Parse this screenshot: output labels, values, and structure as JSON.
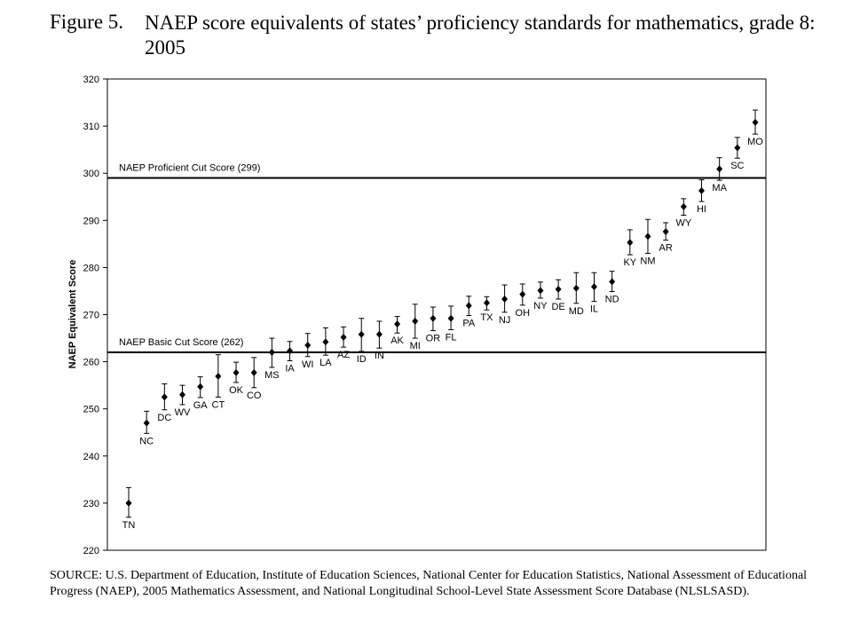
{
  "figure": {
    "label": "Figure 5.",
    "title": "NAEP score equivalents of states’ proficiency standards for mathematics, grade 8: 2005"
  },
  "chart_data": {
    "type": "scatter",
    "ylabel": "NAEP Equivalent Score",
    "ylim": [
      220,
      320
    ],
    "yticks": [
      220,
      230,
      240,
      250,
      260,
      270,
      280,
      290,
      300,
      310,
      320
    ],
    "error_bars": true,
    "grid": false,
    "reference_lines": [
      {
        "label": "NAEP Proficient Cut Score (299)",
        "value": 299
      },
      {
        "label": "NAEP Basic Cut Score (262)",
        "value": 262
      }
    ],
    "points": [
      {
        "state": "TN",
        "value": 230.0,
        "low": 227.0,
        "high": 233.3,
        "label_pos": "below"
      },
      {
        "state": "NC",
        "value": 247.0,
        "low": 244.8,
        "high": 249.5,
        "label_pos": "below"
      },
      {
        "state": "DC",
        "value": 252.5,
        "low": 249.8,
        "high": 255.3,
        "label_pos": "below"
      },
      {
        "state": "WV",
        "value": 253.0,
        "low": 250.9,
        "high": 255.0,
        "label_pos": "below"
      },
      {
        "state": "GA",
        "value": 254.7,
        "low": 252.4,
        "high": 256.8,
        "label_pos": "below"
      },
      {
        "state": "CT",
        "value": 256.9,
        "low": 252.5,
        "high": 261.5,
        "label_pos": "below"
      },
      {
        "state": "OK",
        "value": 257.7,
        "low": 255.6,
        "high": 259.9,
        "label_pos": "below"
      },
      {
        "state": "CO",
        "value": 257.7,
        "low": 254.5,
        "high": 260.9,
        "label_pos": "below"
      },
      {
        "state": "MS",
        "value": 262.0,
        "low": 258.8,
        "high": 265.0,
        "label_pos": "below"
      },
      {
        "state": "IA",
        "value": 262.3,
        "low": 260.2,
        "high": 264.3,
        "label_pos": "below"
      },
      {
        "state": "WI",
        "value": 263.5,
        "low": 261.1,
        "high": 266.0,
        "label_pos": "below"
      },
      {
        "state": "LA",
        "value": 264.2,
        "low": 261.4,
        "high": 267.2,
        "label_pos": "below"
      },
      {
        "state": "AZ",
        "value": 265.2,
        "low": 263.1,
        "high": 267.4,
        "label_pos": "below"
      },
      {
        "state": "ID",
        "value": 265.8,
        "low": 262.2,
        "high": 269.2,
        "label_pos": "below"
      },
      {
        "state": "IN",
        "value": 265.8,
        "low": 262.9,
        "high": 268.6,
        "label_pos": "below"
      },
      {
        "state": "AK",
        "value": 268.0,
        "low": 266.1,
        "high": 269.6,
        "label_pos": "below"
      },
      {
        "state": "MI",
        "value": 268.6,
        "low": 265.0,
        "high": 272.2,
        "label_pos": "below"
      },
      {
        "state": "OR",
        "value": 269.2,
        "low": 266.6,
        "high": 271.6,
        "label_pos": "below"
      },
      {
        "state": "FL",
        "value": 269.2,
        "low": 266.8,
        "high": 271.8,
        "label_pos": "below"
      },
      {
        "state": "PA",
        "value": 271.9,
        "low": 269.8,
        "high": 273.9,
        "label_pos": "below"
      },
      {
        "state": "TX",
        "value": 272.5,
        "low": 271.0,
        "high": 273.8,
        "label_pos": "below"
      },
      {
        "state": "NJ",
        "value": 273.3,
        "low": 270.5,
        "high": 276.3,
        "label_pos": "below"
      },
      {
        "state": "OH",
        "value": 274.3,
        "low": 272.0,
        "high": 276.5,
        "label_pos": "below"
      },
      {
        "state": "NY",
        "value": 275.1,
        "low": 273.5,
        "high": 276.9,
        "label_pos": "below"
      },
      {
        "state": "DE",
        "value": 275.4,
        "low": 273.3,
        "high": 277.4,
        "label_pos": "below"
      },
      {
        "state": "MD",
        "value": 275.6,
        "low": 272.4,
        "high": 278.9,
        "label_pos": "below"
      },
      {
        "state": "IL",
        "value": 275.9,
        "low": 272.8,
        "high": 278.9,
        "label_pos": "below"
      },
      {
        "state": "ND",
        "value": 277.0,
        "low": 274.9,
        "high": 279.2,
        "label_pos": "below"
      },
      {
        "state": "KY",
        "value": 285.3,
        "low": 282.7,
        "high": 288.0,
        "label_pos": "below"
      },
      {
        "state": "NM",
        "value": 286.6,
        "low": 283.0,
        "high": 290.2,
        "label_pos": "below"
      },
      {
        "state": "AR",
        "value": 287.6,
        "low": 285.8,
        "high": 289.5,
        "label_pos": "below"
      },
      {
        "state": "WY",
        "value": 292.9,
        "low": 291.1,
        "high": 294.6,
        "label_pos": "below"
      },
      {
        "state": "HI",
        "value": 296.3,
        "low": 294.0,
        "high": 298.6,
        "label_pos": "below"
      },
      {
        "state": "MA",
        "value": 300.9,
        "low": 298.5,
        "high": 303.3,
        "label_pos": "below"
      },
      {
        "state": "SC",
        "value": 305.4,
        "low": 303.2,
        "high": 307.6,
        "label_pos": "below"
      },
      {
        "state": "MO",
        "value": 310.8,
        "low": 308.3,
        "high": 313.4,
        "label_pos": "below"
      }
    ]
  },
  "source": "SOURCE: U.S. Department of Education, Institute of Education Sciences, National Center for Education Statistics, National Assessment of Educational Progress (NAEP), 2005 Mathematics Assessment, and National Longitudinal School-Level State Assessment Score Database (NLSLSASD)."
}
